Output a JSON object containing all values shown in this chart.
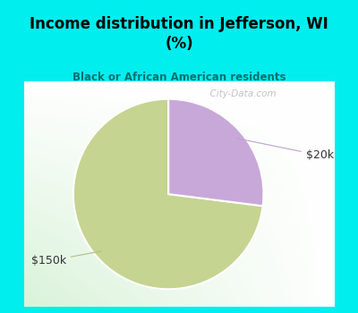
{
  "title": "Income distribution in Jefferson, WI\n(%)",
  "subtitle": "Black or African American residents",
  "title_color": "#000000",
  "subtitle_color": "#007070",
  "background_color": "#00EEEE",
  "slices": [
    0.73,
    0.27
  ],
  "slice_colors": [
    "#c5d490",
    "#c8a8d8"
  ],
  "slice_labels": [
    "$150k",
    "$20k"
  ],
  "label_color": "#333333",
  "startangle": 90,
  "watermark": "  City-Data.com"
}
